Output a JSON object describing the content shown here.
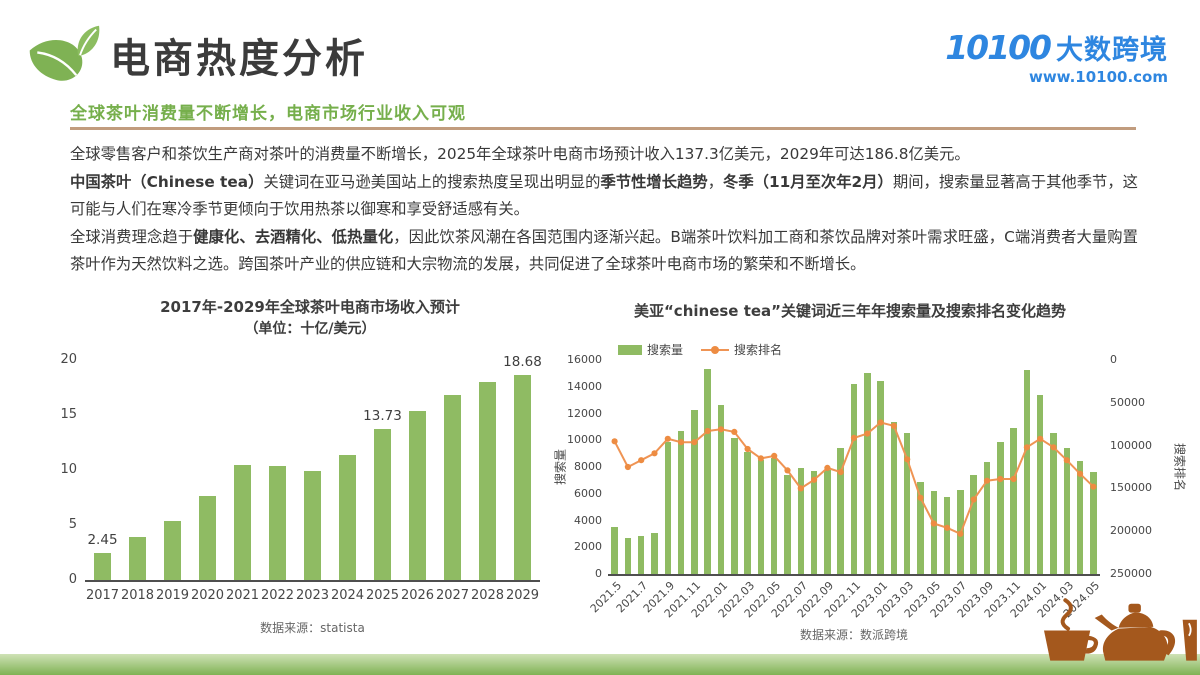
{
  "header": {
    "title": "电商热度分析",
    "subtitle": "全球茶叶消费量不断增长，电商市场行业收入可观",
    "logo": {
      "mark": "10100",
      "brand": "大数跨境",
      "url": "www.10100.com"
    }
  },
  "paragraphs": [
    [
      {
        "text": "全球零售客户和茶饮生产商对茶叶的消费量不断增长，2025年全球茶叶电商市场预计收入137.3亿美元，2029年可达186.8亿美元。",
        "bold": false
      }
    ],
    [
      {
        "text": "中国茶叶（Chinese tea）",
        "bold": true
      },
      {
        "text": "关键词在亚马逊美国站上的搜索热度呈现出明显的",
        "bold": false
      },
      {
        "text": "季节性增长趋势",
        "bold": true
      },
      {
        "text": "，",
        "bold": false
      },
      {
        "text": "冬季（11月至次年2月）",
        "bold": true
      },
      {
        "text": "期间，搜索量显著高于其他季节，这可能与人们在寒冷季节更倾向于饮用热茶以御寒和享受舒适感有关。",
        "bold": false
      }
    ],
    [
      {
        "text": "全球消费理念趋于",
        "bold": false
      },
      {
        "text": "健康化、去酒精化、低热量化",
        "bold": true
      },
      {
        "text": "，因此饮茶风潮在各国范围内逐渐兴起。B端茶叶饮料加工商和茶饮品牌对茶叶需求旺盛，C端消费者大量购置茶叶作为天然饮料之选。跨国茶叶产业的供应链和大宗物流的发展，共同促进了全球茶叶电商市场的繁荣和不断增长。",
        "bold": false
      }
    ]
  ],
  "chart_data": [
    {
      "type": "bar",
      "title": "2017年-2029年全球茶叶电商市场收入预计",
      "subtitle": "（单位：十亿/美元）",
      "categories": [
        "2017",
        "2018",
        "2019",
        "2020",
        "2021",
        "2022",
        "2023",
        "2024",
        "2025",
        "2026",
        "2027",
        "2028",
        "2029"
      ],
      "values": [
        2.45,
        3.95,
        5.4,
        7.6,
        10.45,
        10.35,
        9.9,
        11.4,
        13.73,
        15.4,
        16.8,
        18.0,
        18.68
      ],
      "labeled_points": [
        {
          "index": 0,
          "label": "2.45"
        },
        {
          "index": 8,
          "label": "13.73"
        },
        {
          "index": 12,
          "label": "18.68"
        }
      ],
      "ylim": [
        0,
        20
      ],
      "yticks": [
        0,
        5,
        10,
        15,
        20
      ],
      "grid": false,
      "source": "数据来源：statista"
    },
    {
      "type": "bar+line",
      "title": "美亚“chinese tea”关键词近三年年搜索量及搜索排名变化趋势",
      "x": [
        "2021.5",
        "2021.6",
        "2021.7",
        "2021.8",
        "2021.9",
        "2021.10",
        "2021.11",
        "2021.12",
        "2022.01",
        "2022.02",
        "2022.03",
        "2022.04",
        "2022.05",
        "2022.06",
        "2022.07",
        "2022.08",
        "2022.09",
        "2022.10",
        "2022.11",
        "2022.12",
        "2023.01",
        "2023.02",
        "2023.03",
        "2023.04",
        "2023.05",
        "2023.06",
        "2023.07",
        "2023.08",
        "2023.09",
        "2023.10",
        "2023.11",
        "2023.12",
        "2024.01",
        "2024.02",
        "2024.03",
        "2024.04",
        "2024.05"
      ],
      "xtick_every": 2,
      "series": [
        {
          "name": "搜索量",
          "type": "bar",
          "axis": "left",
          "values": [
            3500,
            2700,
            2850,
            3100,
            9900,
            10700,
            12250,
            15300,
            12650,
            10200,
            9150,
            8500,
            8650,
            7400,
            7900,
            7700,
            7800,
            9400,
            14200,
            15000,
            14450,
            11350,
            10550,
            6900,
            6200,
            5750,
            6300,
            7400,
            8350,
            9900,
            10900,
            15250,
            13400,
            10550,
            9450,
            8450,
            7650
          ]
        },
        {
          "name": "搜索排名",
          "type": "line",
          "axis": "right",
          "values": [
            95000,
            125000,
            117000,
            109000,
            92000,
            96000,
            96000,
            83000,
            81000,
            84000,
            104000,
            115000,
            112000,
            129000,
            150000,
            140000,
            126000,
            131000,
            91000,
            86000,
            73000,
            77000,
            116000,
            161000,
            191000,
            196000,
            203000,
            163000,
            141000,
            139000,
            139000,
            102000,
            92000,
            102000,
            117000,
            133000,
            148000
          ]
        }
      ],
      "left_axis": {
        "label": "搜索量",
        "min": 0,
        "max": 16000,
        "step": 2000
      },
      "right_axis": {
        "label": "搜索排名",
        "min": 0,
        "max": 250000,
        "step": 50000,
        "inverted": true
      },
      "legend_position": "top-left",
      "grid": false,
      "source": "数据来源：数派跨境"
    }
  ],
  "colors": {
    "bar_green": "#8fbb63",
    "line_orange": "#ef9454",
    "marker_orange": "#ed8c42",
    "accent_green": "#76af4c",
    "brand_blue": "#2e86e0",
    "divider_tan": "#c19c7e",
    "footer_green": "#7fb254",
    "tea_brown": "#a4581d"
  }
}
